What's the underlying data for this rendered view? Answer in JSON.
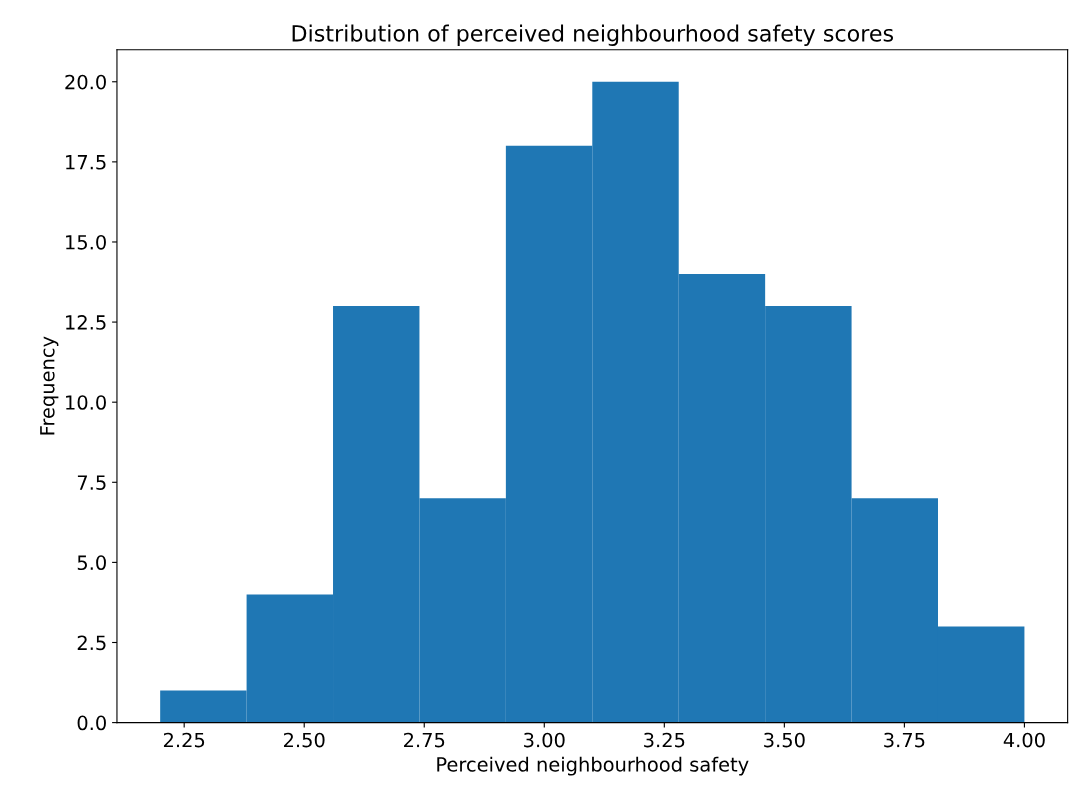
{
  "chart_data": {
    "type": "histogram",
    "title": "Distribution of perceived neighbourhood safety scores",
    "xlabel": "Perceived neighbourhood safety",
    "ylabel": "Frequency",
    "bins": [
      2.2,
      2.38,
      2.56,
      2.74,
      2.92,
      3.1,
      3.28,
      3.46,
      3.64,
      3.82,
      4.0
    ],
    "values": [
      1,
      4,
      13,
      7,
      18,
      20,
      14,
      13,
      7,
      3
    ],
    "color": "#1f77b4",
    "xlim": [
      2.11,
      4.09
    ],
    "xticks": [
      {
        "value": 2.25,
        "label": "2.25"
      },
      {
        "value": 2.5,
        "label": "2.50"
      },
      {
        "value": 2.75,
        "label": "2.75"
      },
      {
        "value": 3.0,
        "label": "3.00"
      },
      {
        "value": 3.25,
        "label": "3.25"
      },
      {
        "value": 3.5,
        "label": "3.50"
      },
      {
        "value": 3.75,
        "label": "3.75"
      },
      {
        "value": 4.0,
        "label": "4.00"
      }
    ],
    "ylim": [
      0,
      21
    ],
    "yticks": [
      {
        "value": 0,
        "label": "0.0"
      },
      2.5,
      {
        "value": 5,
        "label": "5.0"
      },
      7.5,
      {
        "value": 10,
        "label": "10.0"
      },
      12.5,
      {
        "value": 15,
        "label": "15.0"
      },
      17.5,
      {
        "value": 20,
        "label": "20.0"
      }
    ],
    "grid": false
  }
}
